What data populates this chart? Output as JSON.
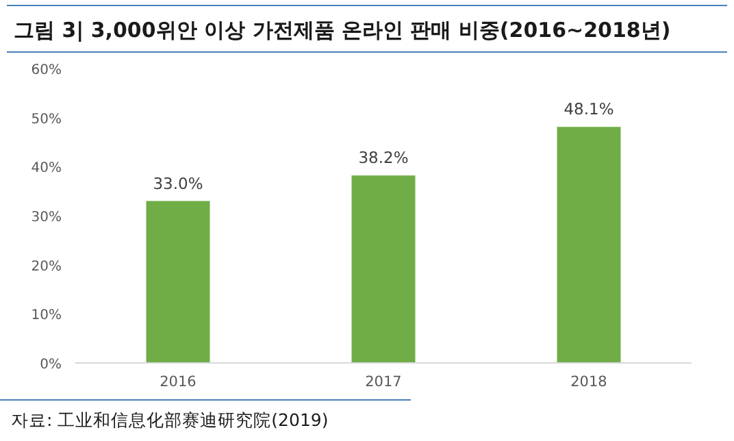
{
  "chart_data": {
    "type": "bar",
    "title": "그림 3| 3,000위안 이상 가전제품 온라인 판매 비중(2016~2018년)",
    "categories": [
      "2016",
      "2017",
      "2018"
    ],
    "values": [
      33.0,
      38.2,
      48.1
    ],
    "value_labels": [
      "33.0%",
      "38.2%",
      "48.1%"
    ],
    "color": "#70ad47",
    "ylim": [
      0,
      60
    ],
    "yticks": [
      {
        "value": 0,
        "label": "0%"
      },
      {
        "value": 10,
        "label": "10%"
      },
      {
        "value": 20,
        "label": "20%"
      },
      {
        "value": 30,
        "label": "30%"
      },
      {
        "value": 40,
        "label": "40%"
      },
      {
        "value": 50,
        "label": "50%"
      },
      {
        "value": 60,
        "label": "60%"
      }
    ],
    "annotations": [
      "자료: 工业和信息化部赛迪研究院(2019)"
    ]
  }
}
